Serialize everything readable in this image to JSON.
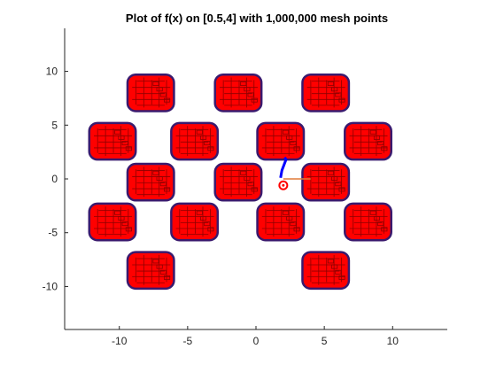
{
  "chart_data": {
    "type": "scatter",
    "title": "Plot of f(x) on [0.5,4] with 1,000,000 mesh points",
    "xlabel": "",
    "ylabel": "",
    "xlim": [
      -14,
      14
    ],
    "ylim": [
      -14,
      14
    ],
    "xticks": [
      -10,
      -5,
      0,
      5,
      10
    ],
    "yticks": [
      -10,
      -5,
      0,
      5,
      10
    ],
    "xtick_labels": [
      "-10",
      "-5",
      "0",
      "5",
      "10"
    ],
    "ytick_labels": [
      "-10",
      "-5",
      "0",
      "5",
      "10"
    ],
    "grid": false,
    "legend": "none",
    "fill_color": "#ff0000",
    "outline_color": "#3a1a6e",
    "mesh_color": "#7a0000",
    "tiles": [
      {
        "cx": -7.7,
        "cy": 8.0
      },
      {
        "cx": -1.3,
        "cy": 8.0
      },
      {
        "cx": 5.1,
        "cy": 8.0
      },
      {
        "cx": -10.5,
        "cy": 3.5
      },
      {
        "cx": -4.5,
        "cy": 3.5
      },
      {
        "cx": 1.8,
        "cy": 3.5
      },
      {
        "cx": 8.2,
        "cy": 3.5
      },
      {
        "cx": -7.7,
        "cy": -0.3
      },
      {
        "cx": -1.3,
        "cy": -0.3
      },
      {
        "cx": 5.1,
        "cy": -0.3
      },
      {
        "cx": -10.5,
        "cy": -4.0
      },
      {
        "cx": -4.5,
        "cy": -4.0
      },
      {
        "cx": 1.8,
        "cy": -4.0
      },
      {
        "cx": 8.2,
        "cy": -4.0
      },
      {
        "cx": -7.7,
        "cy": -8.5
      },
      {
        "cx": 5.1,
        "cy": -8.5
      }
    ],
    "tile_half_size": 1.7,
    "tile_corner": 0.6,
    "overlays": {
      "orange_segment": {
        "x": [
          2.0,
          4.0
        ],
        "y": [
          0.0,
          0.0
        ],
        "color": "#e07b39"
      },
      "blue_path": {
        "x": [
          1.8,
          1.9,
          2.2,
          2.1
        ],
        "y": [
          0.1,
          0.8,
          1.8,
          2.0
        ],
        "color": "#0000ff"
      },
      "red_marker": {
        "x": 2.0,
        "y": -0.6,
        "color": "#ff0000"
      }
    }
  }
}
